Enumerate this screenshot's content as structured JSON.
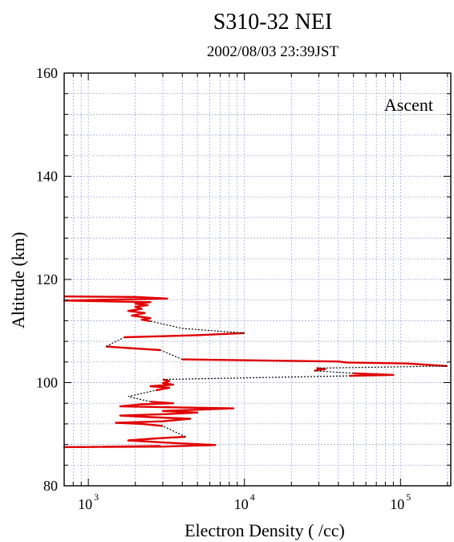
{
  "chart_data": {
    "type": "line",
    "title": "S310-32   NEI",
    "subtitle": "2002/08/03      23:39JST",
    "xlabel": "Electron Density ( /cc)",
    "ylabel": "Altitude (km)",
    "annotation": "Ascent",
    "x_scale": "log",
    "xlim": [
      700,
      210000
    ],
    "ylim": [
      80,
      160
    ],
    "x_ticks": [
      {
        "value": 1000,
        "base": "10",
        "exp": "3"
      },
      {
        "value": 10000,
        "base": "10",
        "exp": "4"
      },
      {
        "value": 100000,
        "base": "10",
        "exp": "5"
      }
    ],
    "y_ticks": [
      "80",
      "100",
      "120",
      "140",
      "160"
    ],
    "y_tick_values": [
      80,
      100,
      120,
      140,
      160
    ],
    "grid": true,
    "colors": {
      "series": "#e00000",
      "gap": "#000000",
      "grid": "#9999dd"
    },
    "series": [
      {
        "style": "solid",
        "segments": [
          [
            [
              2900,
              87.7
            ],
            [
              1500,
              87.6
            ],
            [
              900,
              87.5
            ],
            [
              700,
              87.5
            ],
            [
              3000,
              87.6
            ],
            [
              6500,
              87.9
            ],
            [
              3500,
              88.3
            ],
            [
              1800,
              88.8
            ],
            [
              2500,
              89.1
            ],
            [
              3200,
              89.3
            ],
            [
              4200,
              89.5
            ]
          ],
          [
            [
              3000,
              91.6
            ],
            [
              2200,
              92.0
            ],
            [
              1500,
              92.2
            ],
            [
              3000,
              92.5
            ],
            [
              4500,
              93.0
            ],
            [
              2500,
              93.3
            ],
            [
              1600,
              93.6
            ],
            [
              3200,
              93.9
            ],
            [
              5000,
              94.2
            ],
            [
              3000,
              94.5
            ],
            [
              8500,
              95.0
            ],
            [
              3500,
              95.2
            ],
            [
              1600,
              95.4
            ],
            [
              2200,
              95.8
            ],
            [
              3500,
              96.0
            ],
            [
              2500,
              96.3
            ]
          ],
          [
            [
              2700,
              98.5
            ],
            [
              3300,
              99.0
            ],
            [
              2500,
              99.3
            ],
            [
              3500,
              99.6
            ],
            [
              3000,
              99.9
            ],
            [
              3300,
              100.3
            ],
            [
              3000,
              100.6
            ]
          ],
          [
            [
              47000,
              101.3
            ],
            [
              90000,
              101.5
            ],
            [
              50000,
              101.8
            ]
          ],
          [
            [
              28000,
              102.3
            ],
            [
              33000,
              102.6
            ],
            [
              29000,
              102.8
            ]
          ],
          [
            [
              200000,
              103.2
            ],
            [
              110000,
              103.7
            ],
            [
              45000,
              103.9
            ],
            [
              40000,
              104.1
            ],
            [
              4000,
              104.5
            ]
          ],
          [
            [
              2900,
              106.3
            ],
            [
              1600,
              106.8
            ],
            [
              1300,
              107.0
            ]
          ],
          [
            [
              1700,
              108.8
            ],
            [
              3000,
              109.0
            ],
            [
              5000,
              109.2
            ],
            [
              10000,
              109.6
            ]
          ],
          [
            [
              2500,
              111.9
            ],
            [
              2200,
              112.2
            ],
            [
              2500,
              112.5
            ],
            [
              1900,
              113.0
            ],
            [
              2300,
              113.5
            ],
            [
              1800,
              113.9
            ],
            [
              2200,
              114.3
            ],
            [
              2000,
              114.7
            ],
            [
              2400,
              115.0
            ],
            [
              2000,
              115.3
            ],
            [
              2500,
              115.6
            ],
            [
              700,
              115.9
            ],
            [
              3200,
              116.3
            ],
            [
              2000,
              116.6
            ],
            [
              700,
              116.7
            ]
          ]
        ]
      },
      {
        "style": "dotted",
        "segments": [
          [
            [
              4200,
              89.5
            ],
            [
              3000,
              91.6
            ]
          ],
          [
            [
              2500,
              96.3
            ],
            [
              1800,
              97.3
            ],
            [
              2700,
              98.5
            ]
          ],
          [
            [
              3000,
              100.6
            ],
            [
              47000,
              101.3
            ]
          ],
          [
            [
              50000,
              101.8
            ],
            [
              28000,
              102.3
            ]
          ],
          [
            [
              29000,
              102.8
            ],
            [
              200000,
              103.2
            ]
          ],
          [
            [
              4000,
              104.5
            ],
            [
              2900,
              106.3
            ]
          ],
          [
            [
              1300,
              107.0
            ],
            [
              1700,
              108.8
            ]
          ],
          [
            [
              10000,
              109.6
            ],
            [
              4000,
              110.5
            ],
            [
              2500,
              111.9
            ]
          ]
        ]
      }
    ]
  }
}
